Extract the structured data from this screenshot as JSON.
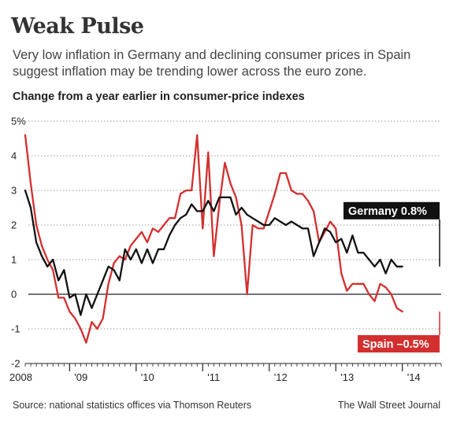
{
  "header": {
    "title": "Weak Pulse",
    "subtitle": "Very low inflation in Germany and declining consumer prices in Spain suggest inflation may be trending lower across the euro zone.",
    "chart_label": "Change from a year earlier in consumer-price indexes"
  },
  "footer": {
    "source": "Source: national statistics offices via Thomson Reuters",
    "credit": "The Wall Street Journal"
  },
  "colors": {
    "germany": "#111111",
    "spain": "#d32f2f",
    "grid": "#999999"
  },
  "chart_data": {
    "type": "line",
    "title": "Change from a year earlier in consumer-price indexes",
    "xlabel": "",
    "ylabel": "",
    "ylim": [
      -2,
      5
    ],
    "y_ticks": [
      "5%",
      "4",
      "3",
      "2",
      "1",
      "0",
      "-1",
      "-2"
    ],
    "x_tick_labels": [
      "2008",
      "'09",
      "'10",
      "'11",
      "'12",
      "'13",
      "'14"
    ],
    "x_range": [
      "2008-05",
      "2014-08"
    ],
    "grid": "horizontal dotted",
    "series": [
      {
        "name": "Germany",
        "callout": "Germany 0.8%",
        "color": "#111111",
        "start": "2008-05",
        "values": [
          3.0,
          2.5,
          1.5,
          1.1,
          0.8,
          1.0,
          0.4,
          0.7,
          -0.1,
          0.0,
          -0.6,
          0.0,
          -0.4,
          0.0,
          0.4,
          0.8,
          0.7,
          0.4,
          1.3,
          1.0,
          1.3,
          0.9,
          1.3,
          0.9,
          1.3,
          1.3,
          1.7,
          2.0,
          2.2,
          2.3,
          2.6,
          2.4,
          2.4,
          2.7,
          2.4,
          2.8,
          2.8,
          2.8,
          2.3,
          2.5,
          2.3,
          2.2,
          2.1,
          2.0,
          2.0,
          2.2,
          2.1,
          2.0,
          2.1,
          2.0,
          1.9,
          1.9,
          1.1,
          1.5,
          1.9,
          1.8,
          1.5,
          1.6,
          1.2,
          1.7,
          1.2,
          1.2,
          1.0,
          0.8,
          1.0,
          0.6,
          1.0,
          0.8,
          0.8
        ]
      },
      {
        "name": "Spain",
        "callout": "Spain –0.5%",
        "color": "#d32f2f",
        "start": "2008-05",
        "values": [
          4.6,
          3.2,
          2.0,
          1.4,
          1.0,
          0.7,
          -0.1,
          -0.1,
          -0.5,
          -0.7,
          -1.0,
          -1.4,
          -0.8,
          -1.0,
          -0.7,
          0.3,
          0.9,
          1.1,
          1.0,
          1.4,
          1.6,
          1.8,
          1.5,
          1.9,
          1.8,
          2.0,
          2.2,
          2.2,
          2.9,
          3.0,
          3.0,
          4.6,
          1.9,
          4.1,
          1.1,
          2.6,
          3.8,
          3.2,
          2.8,
          2.0,
          0.0,
          2.0,
          1.9,
          1.9,
          2.4,
          2.9,
          3.5,
          3.5,
          3.0,
          2.9,
          2.9,
          2.7,
          2.4,
          1.5,
          1.8,
          2.1,
          1.9,
          0.6,
          0.1,
          0.3,
          0.3,
          0.3,
          0.0,
          -0.2,
          0.3,
          0.2,
          0.0,
          -0.4,
          -0.5
        ]
      }
    ]
  }
}
